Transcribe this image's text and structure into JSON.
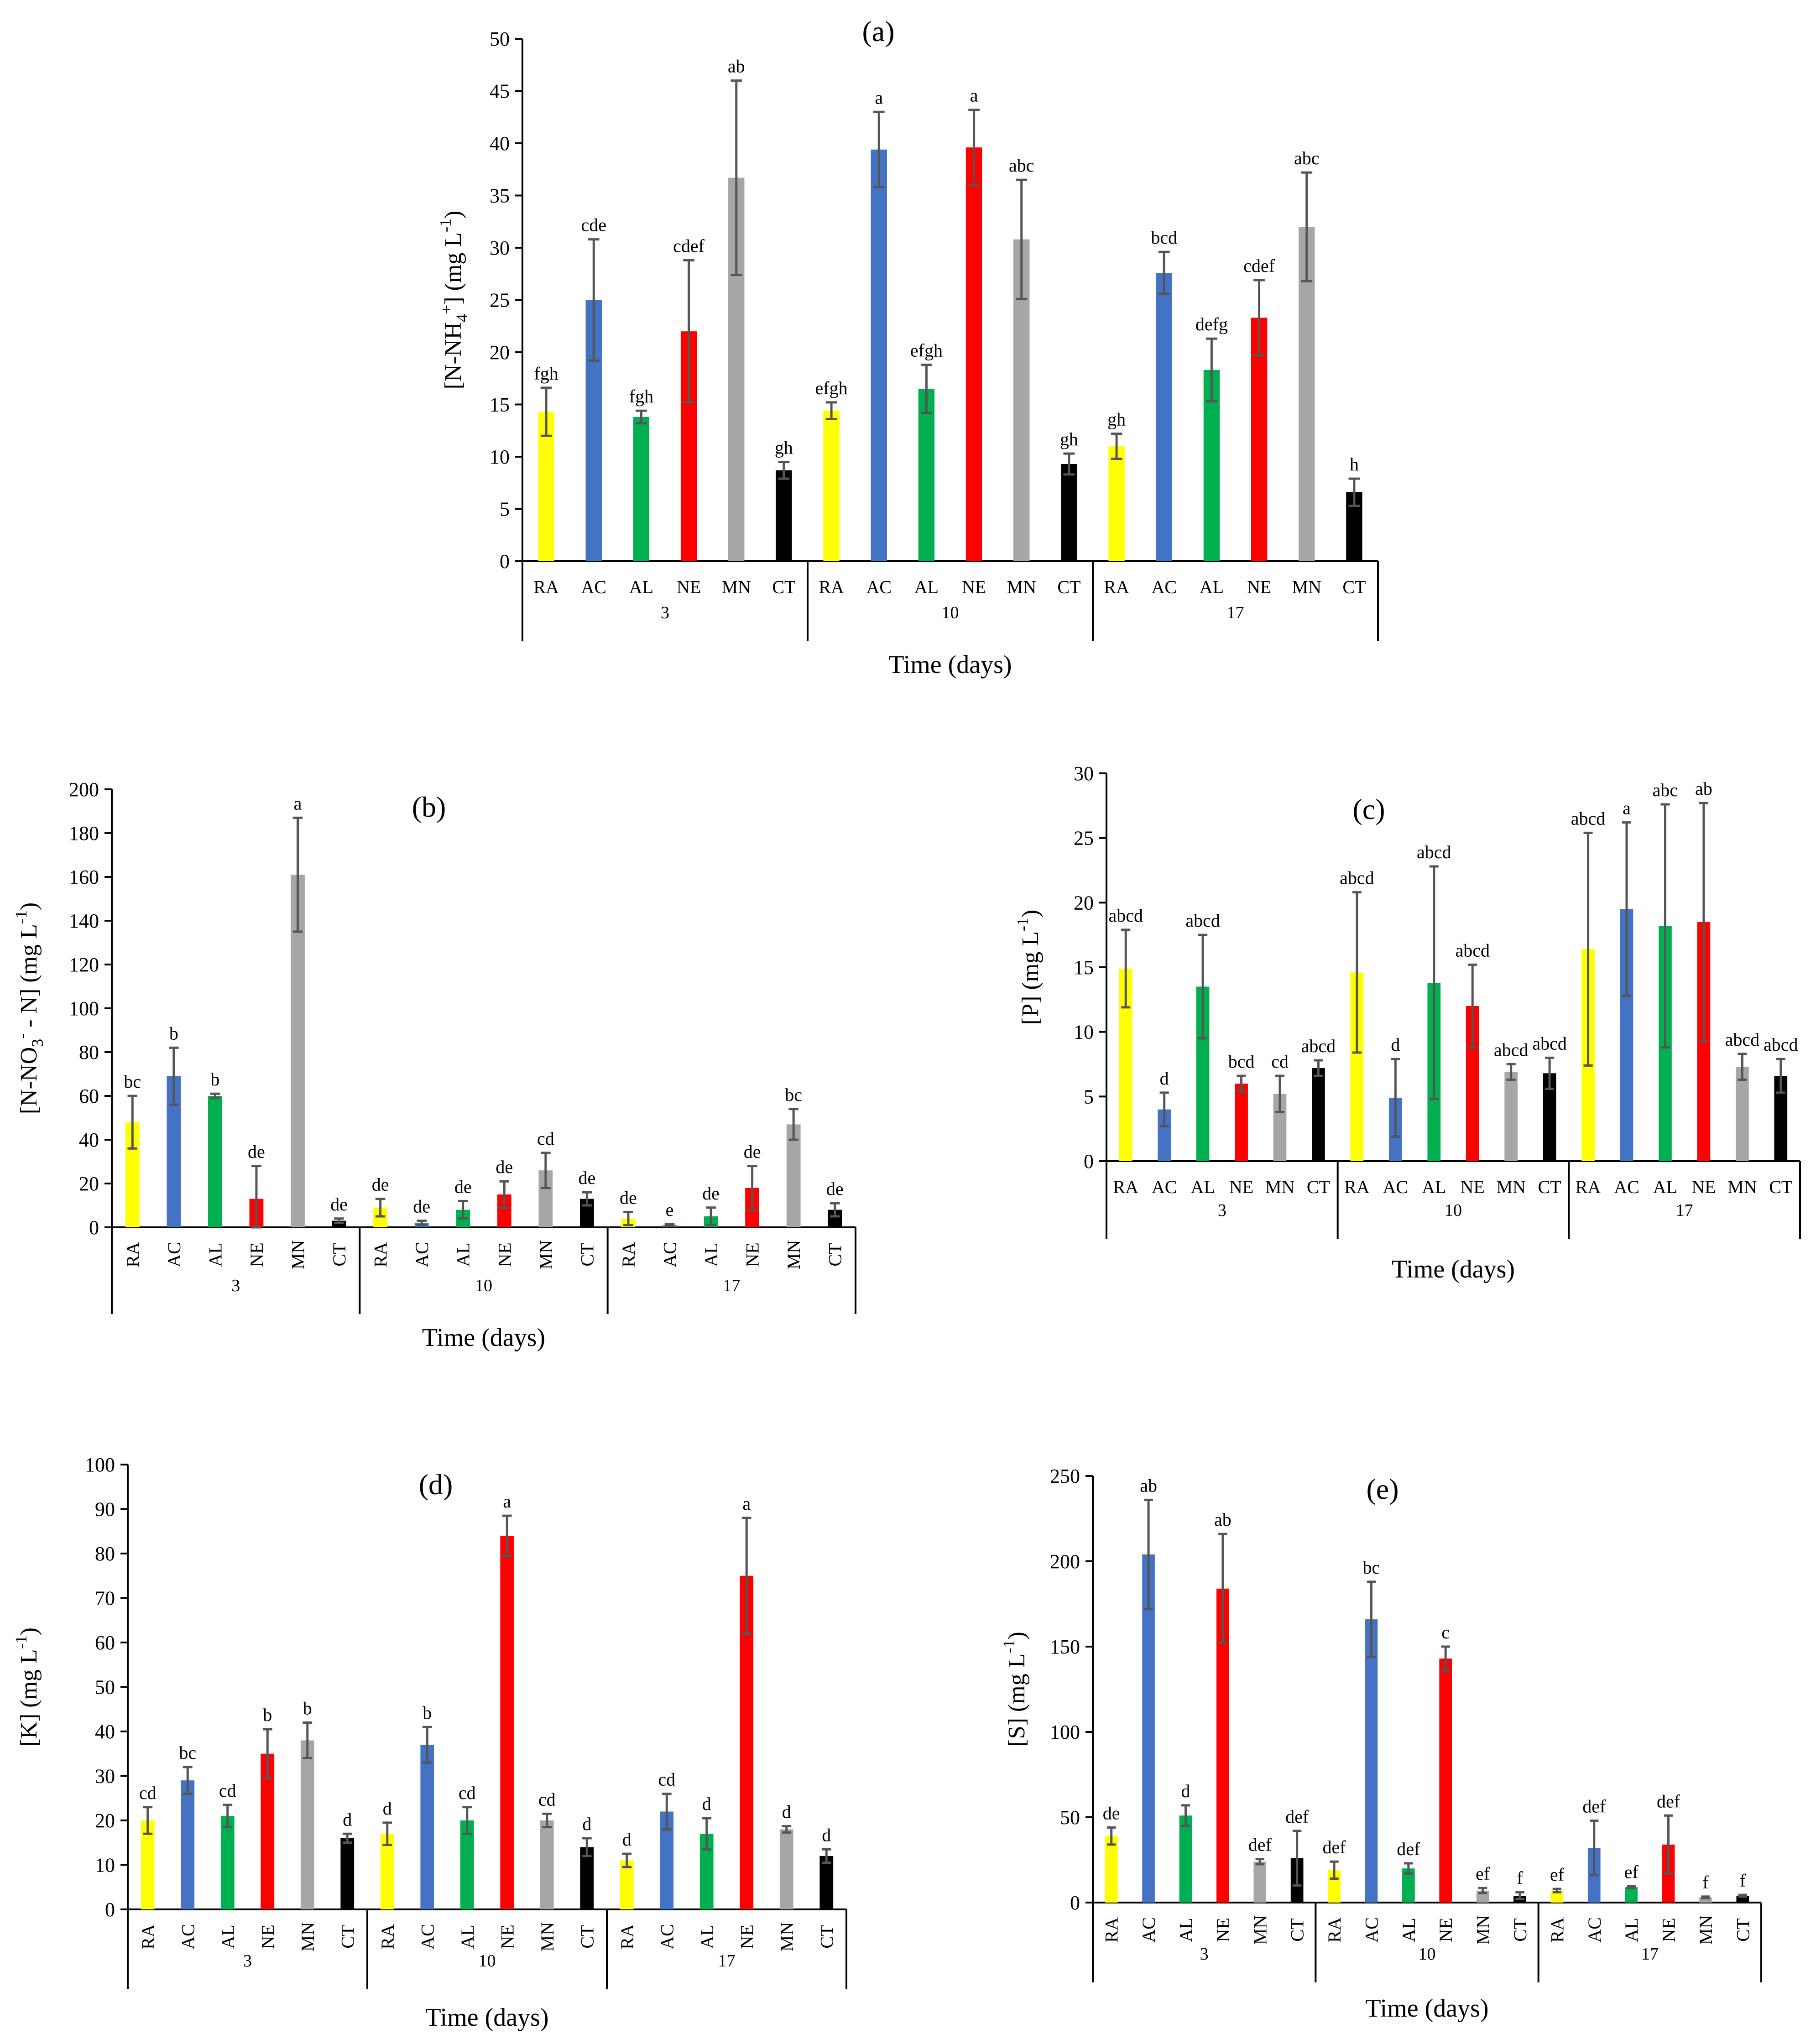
{
  "figure": {
    "categories": [
      "RA",
      "AC",
      "AL",
      "NE",
      "MN",
      "CT"
    ],
    "category_colors": {
      "RA": "#ffff00",
      "AC": "#4472c4",
      "AL": "#00b050",
      "NE": "#ff0000",
      "MN": "#a6a6a6",
      "CT": "#000000"
    },
    "error_bar_color": "#555555",
    "group_labels": [
      "3",
      "10",
      "17"
    ]
  },
  "chart_data": [
    {
      "id": "a",
      "type": "bar",
      "title": "(a)",
      "xlabel": "Time (days)",
      "ylabel_main": "[N-NH",
      "ylabel_sub": "4",
      "ylabel_sup": "+",
      "ylabel_after": "] (mg L",
      "ylabel_sup2": "-1",
      "ylabel_end": ")",
      "ylim": [
        0,
        50
      ],
      "yticks": [
        0,
        5,
        10,
        15,
        20,
        25,
        30,
        35,
        40,
        45,
        50
      ],
      "groups": [
        "3",
        "10",
        "17"
      ],
      "categories": [
        "RA",
        "AC",
        "AL",
        "NE",
        "MN",
        "CT"
      ],
      "series": [
        {
          "group": "3",
          "values": [
            14.3,
            25.0,
            13.8,
            22.0,
            36.7,
            8.7
          ],
          "errors": [
            2.3,
            5.8,
            0.6,
            6.8,
            9.3,
            0.8
          ],
          "labels": [
            "fgh",
            "cde",
            "fgh",
            "cdef",
            "ab",
            "gh"
          ]
        },
        {
          "group": "10",
          "values": [
            14.4,
            39.4,
            16.5,
            39.6,
            30.8,
            9.3
          ],
          "errors": [
            0.8,
            3.6,
            2.3,
            3.6,
            5.7,
            1.0
          ],
          "labels": [
            "efgh",
            "a",
            "efgh",
            "a",
            "abc",
            "gh"
          ]
        },
        {
          "group": "17",
          "values": [
            11.0,
            27.6,
            18.3,
            23.3,
            32.0,
            6.6
          ],
          "errors": [
            1.2,
            2.0,
            3.0,
            3.6,
            5.2,
            1.3
          ],
          "labels": [
            "gh",
            "bcd",
            "defg",
            "cdef",
            "abc",
            "h"
          ]
        }
      ]
    },
    {
      "id": "b",
      "type": "bar",
      "title": "(b)",
      "xlabel": "Time (days)",
      "ylabel_main": "[N-NO",
      "ylabel_sub": "3",
      "ylabel_sup": "-",
      "ylabel_after": " - N]  (mg L",
      "ylabel_sup2": "-1",
      "ylabel_end": ")",
      "ylim": [
        0,
        200
      ],
      "yticks": [
        0,
        20,
        40,
        60,
        80,
        100,
        120,
        140,
        160,
        180,
        200
      ],
      "groups": [
        "3",
        "10",
        "17"
      ],
      "categories": [
        "RA",
        "AC",
        "AL",
        "NE",
        "MN",
        "CT"
      ],
      "series": [
        {
          "group": "3",
          "values": [
            48,
            69,
            60,
            13,
            161,
            3
          ],
          "errors": [
            12,
            13,
            1,
            15,
            26,
            1
          ],
          "labels": [
            "bc",
            "b",
            "b",
            "de",
            "a",
            "de"
          ]
        },
        {
          "group": "10",
          "values": [
            9,
            2,
            8,
            15,
            26,
            13
          ],
          "errors": [
            4,
            1,
            4,
            6,
            8,
            3
          ],
          "labels": [
            "de",
            "de",
            "de",
            "de",
            "cd",
            "de"
          ]
        },
        {
          "group": "17",
          "values": [
            4,
            1,
            5,
            18,
            47,
            8
          ],
          "errors": [
            3,
            0.5,
            4,
            10,
            7,
            3
          ],
          "labels": [
            "de",
            "e",
            "de",
            "de",
            "bc",
            "de"
          ]
        }
      ]
    },
    {
      "id": "c",
      "type": "bar",
      "title": "(c)",
      "xlabel": "Time (days)",
      "ylabel_main": "[P]  (mg L",
      "ylabel_sub": "",
      "ylabel_sup": "",
      "ylabel_after": "",
      "ylabel_sup2": "-1",
      "ylabel_end": ")",
      "ylim": [
        0,
        30
      ],
      "yticks": [
        0,
        5,
        10,
        15,
        20,
        25,
        30
      ],
      "groups": [
        "3",
        "10",
        "17"
      ],
      "categories": [
        "RA",
        "AC",
        "AL",
        "NE",
        "MN",
        "CT"
      ],
      "series": [
        {
          "group": "3",
          "values": [
            14.9,
            4.0,
            13.5,
            6.0,
            5.2,
            7.2
          ],
          "errors": [
            3.0,
            1.3,
            4.0,
            0.6,
            1.4,
            0.6
          ],
          "labels": [
            "abcd",
            "d",
            "abcd",
            "bcd",
            "cd",
            "abcd"
          ]
        },
        {
          "group": "10",
          "values": [
            14.6,
            4.9,
            13.8,
            12.0,
            6.9,
            6.8
          ],
          "errors": [
            6.2,
            3.0,
            9.0,
            3.2,
            0.6,
            1.2
          ],
          "labels": [
            "abcd",
            "d",
            "abcd",
            "abcd",
            "abcd",
            "abcd"
          ]
        },
        {
          "group": "17",
          "values": [
            16.4,
            19.5,
            18.2,
            18.5,
            7.3,
            6.6
          ],
          "errors": [
            9.0,
            6.7,
            9.4,
            9.2,
            1.0,
            1.3
          ],
          "labels": [
            "abcd",
            "a",
            "abc",
            "ab",
            "abcd",
            "abcd"
          ]
        }
      ]
    },
    {
      "id": "d",
      "type": "bar",
      "title": "(d)",
      "xlabel": "Time (days)",
      "ylabel_main": "[K]  (mg L",
      "ylabel_sub": "",
      "ylabel_sup": "",
      "ylabel_after": "",
      "ylabel_sup2": "-1",
      "ylabel_end": ")",
      "ylim": [
        0,
        100
      ],
      "yticks": [
        0,
        10,
        20,
        30,
        40,
        50,
        60,
        70,
        80,
        90,
        100
      ],
      "groups": [
        "3",
        "10",
        "17"
      ],
      "categories": [
        "RA",
        "AC",
        "AL",
        "NE",
        "MN",
        "CT"
      ],
      "series": [
        {
          "group": "3",
          "values": [
            20,
            29,
            21,
            35,
            38,
            16
          ],
          "errors": [
            3,
            3,
            2.5,
            5.5,
            4,
            1
          ],
          "labels": [
            "cd",
            "bc",
            "cd",
            "b",
            "b",
            "d"
          ]
        },
        {
          "group": "10",
          "values": [
            17,
            37,
            20,
            84,
            20,
            14
          ],
          "errors": [
            2.5,
            4,
            3,
            4.5,
            1.5,
            2
          ],
          "labels": [
            "d",
            "b",
            "cd",
            "a",
            "cd",
            "d"
          ]
        },
        {
          "group": "17",
          "values": [
            11,
            22,
            17,
            75,
            18,
            12
          ],
          "errors": [
            1.5,
            4,
            3.5,
            13,
            0.7,
            1.5
          ],
          "labels": [
            "d",
            "cd",
            "d",
            "a",
            "d",
            "d"
          ]
        }
      ]
    },
    {
      "id": "e",
      "type": "bar",
      "title": "(e)",
      "xlabel": "Time (days)",
      "ylabel_main": "[S] (mg L",
      "ylabel_sub": "",
      "ylabel_sup": "",
      "ylabel_after": "",
      "ylabel_sup2": "-1",
      "ylabel_end": ")",
      "ylim": [
        0,
        250
      ],
      "yticks": [
        0,
        50,
        100,
        150,
        200,
        250
      ],
      "groups": [
        "3",
        "10",
        "17"
      ],
      "categories": [
        "RA",
        "AC",
        "AL",
        "NE",
        "MN",
        "CT"
      ],
      "series": [
        {
          "group": "3",
          "values": [
            39,
            204,
            51,
            184,
            24,
            26
          ],
          "errors": [
            5,
            32,
            6,
            32,
            1.5,
            16
          ],
          "labels": [
            "de",
            "ab",
            "d",
            "ab",
            "def",
            "def"
          ]
        },
        {
          "group": "10",
          "values": [
            19,
            166,
            20,
            143,
            7,
            4
          ],
          "errors": [
            5,
            22,
            3,
            7,
            1.5,
            2
          ],
          "labels": [
            "def",
            "bc",
            "def",
            "c",
            "ef",
            "f"
          ]
        },
        {
          "group": "17",
          "values": [
            7,
            32,
            9,
            34,
            3,
            4
          ],
          "errors": [
            1,
            16,
            0.5,
            17,
            0.5,
            0.5
          ],
          "labels": [
            "ef",
            "def",
            "ef",
            "def",
            "f",
            "f"
          ]
        }
      ]
    }
  ]
}
